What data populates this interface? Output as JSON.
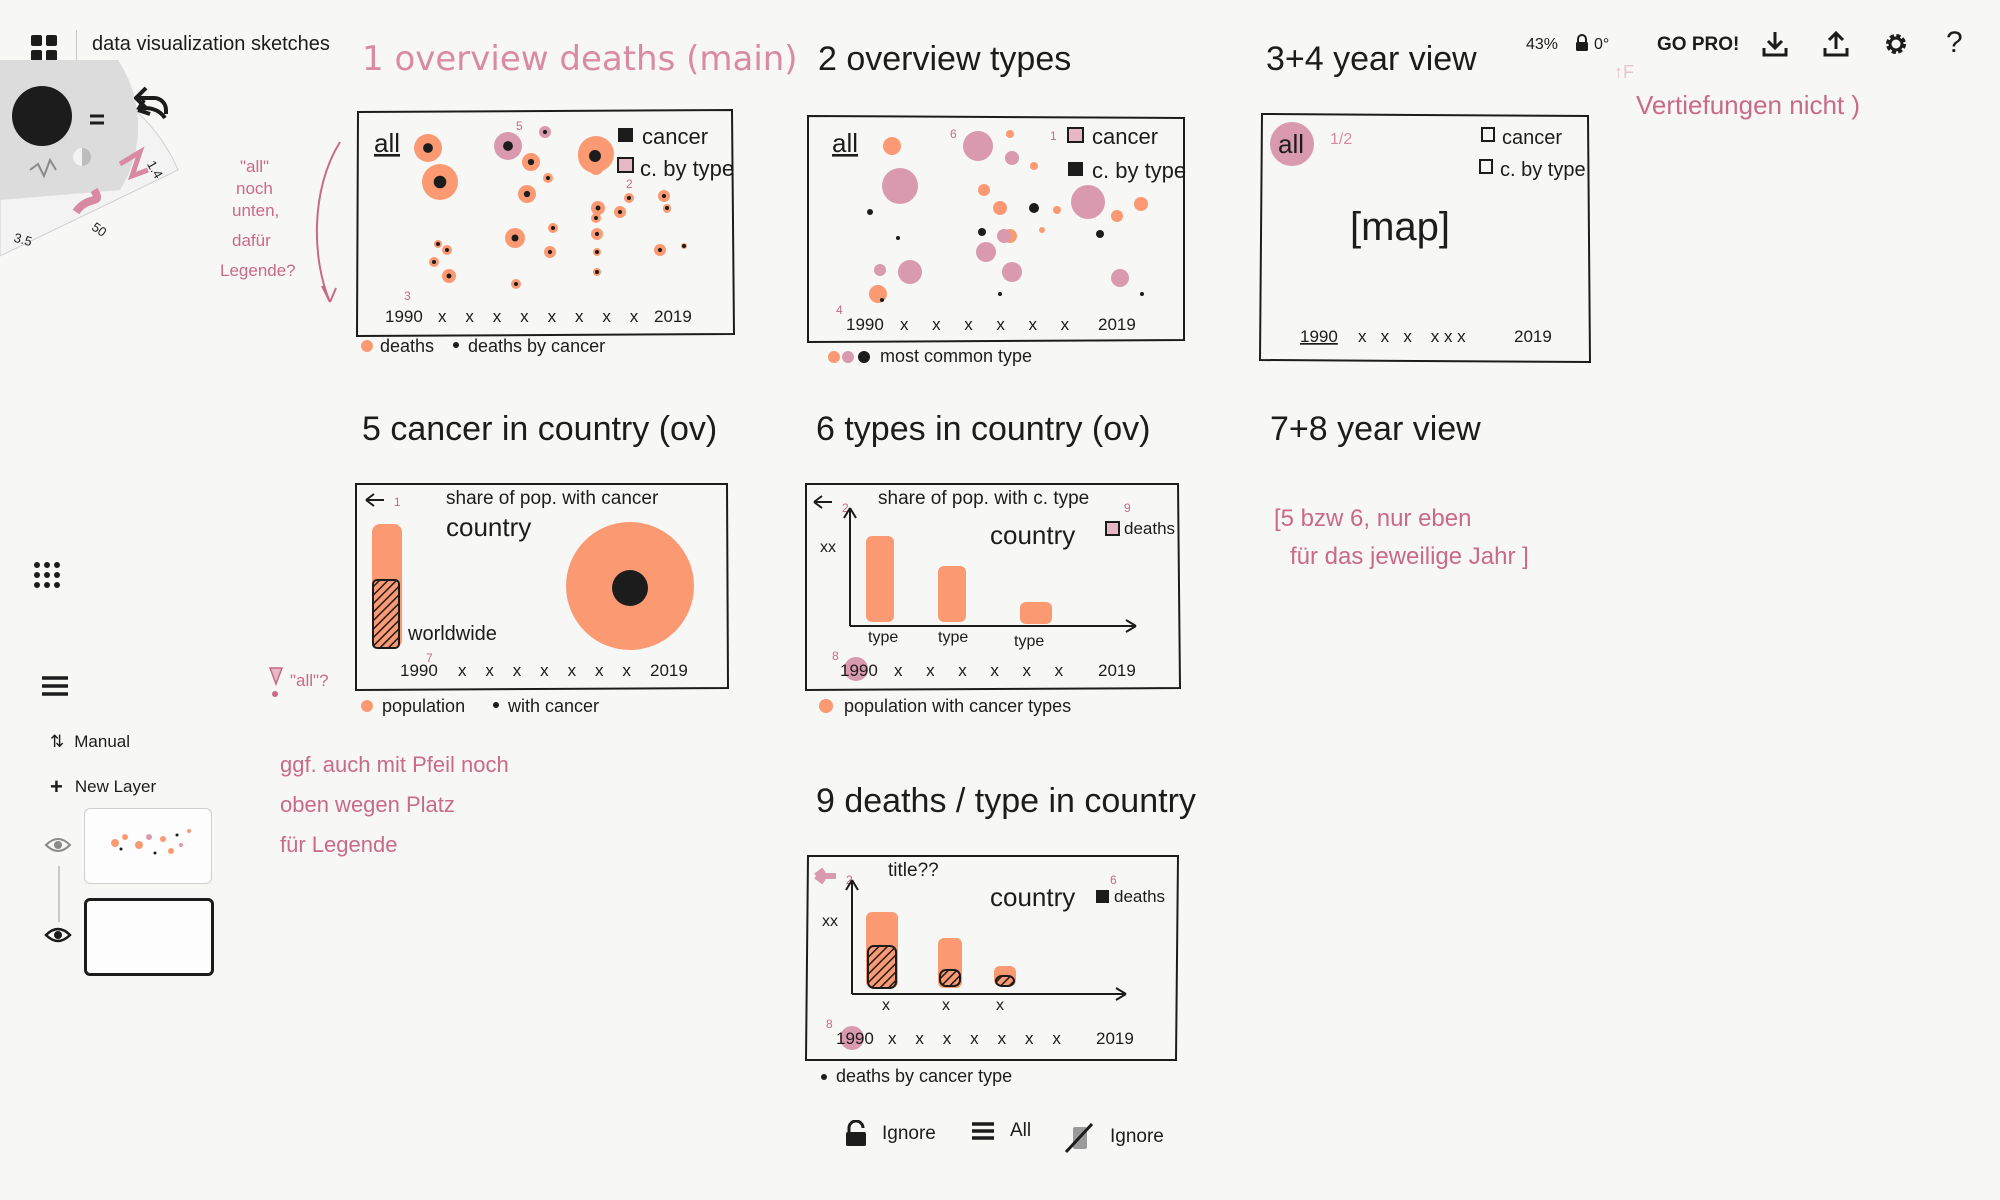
{
  "app": {
    "doc_title": "data visualization sketches",
    "zoom": "43%",
    "rotation": "0°",
    "go_pro": "GO PRO!",
    "help": "?"
  },
  "brush": {
    "size_a": "1.4",
    "size_b": "50",
    "size_c": "3.5"
  },
  "layers": {
    "manual_label": "Manual",
    "new_layer_label": "New Layer"
  },
  "bottom_bar": {
    "lock_label": "Ignore",
    "all_label": "All",
    "ignore_label": "Ignore"
  },
  "sketch": {
    "s1": {
      "heading": "1 overview deaths (main)",
      "tag": "all",
      "legend_cancer": "cancer",
      "legend_type": "c. by type",
      "x_start": "1990",
      "x_end": "2019",
      "footer_a": "deaths",
      "footer_b": "deaths by cancer",
      "n5": "5",
      "n2": "2",
      "n3": "3"
    },
    "s1_note": [
      "\"all\"",
      "noch",
      "unten,",
      "dafür",
      "Legende?"
    ],
    "s2": {
      "heading": "2 overview types",
      "tag": "all",
      "legend_cancer": "cancer",
      "legend_type": "c. by type",
      "x_start": "1990",
      "x_end": "2019",
      "footer": "most common type",
      "n6": "6",
      "n1": "1",
      "n4": "4"
    },
    "s34": {
      "heading": "3+4 year view",
      "tag": "all",
      "frac": "1/2",
      "legend_cancer": "cancer",
      "legend_type": "c. by type",
      "map": "[map]",
      "x_start": "1990",
      "x_end": "2019"
    },
    "s34_note": "Vertiefungen nicht )",
    "s5": {
      "heading": "5 cancer in country (ov)",
      "subtitle": "share of pop. with cancer",
      "country": "country",
      "worldwide": "worldwide",
      "x_start": "1990",
      "x_end": "2019",
      "footer_a": "population",
      "footer_b": "with cancer",
      "n1": "1",
      "n7": "7"
    },
    "s5_note": "\"all\"?",
    "s6": {
      "heading": "6 types in country (ov)",
      "subtitle": "share of pop. with c. type",
      "country": "country",
      "deaths": "deaths",
      "yaxis": "xx",
      "cat": [
        "type",
        "type",
        "type"
      ],
      "x_start": "1990",
      "x_end": "2019",
      "footer": "population with cancer types",
      "n2": "2",
      "n9": "9",
      "n8": "8"
    },
    "s78": {
      "heading": "7+8 year view",
      "note_line1": "[5 bzw 6, nur eben",
      "note_line2": "für das jeweilige Jahr ]"
    },
    "s9": {
      "heading": "9 deaths / type in country",
      "subtitle": "title??",
      "country": "country",
      "deaths": "deaths",
      "yaxis": "xx",
      "x_start": "1990",
      "x_end": "2019",
      "footer": "deaths by cancer type",
      "n2": "2",
      "n6": "6",
      "n8": "8"
    },
    "side_note": [
      "ggf. auch mit Pfeil noch",
      "oben wegen Platz",
      "für Legende"
    ]
  },
  "colors": {
    "paper": "#f7f7f6",
    "ink": "#1c1c1c",
    "orange": "#fb9a72",
    "pink": "#d99ab0",
    "note_pink": "#c96a88"
  }
}
